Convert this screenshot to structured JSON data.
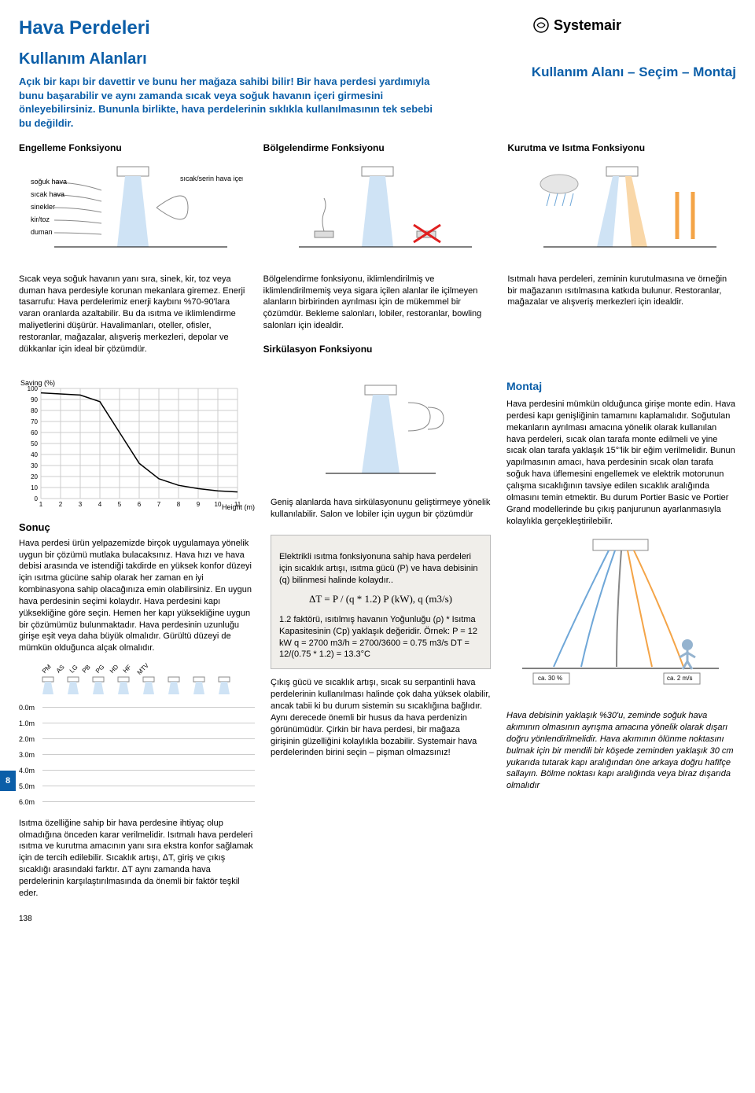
{
  "header": {
    "main_title": "Hava Perdeleri",
    "subtitle": "Kullanım Alanları",
    "pre_subtitle": "Kullanım Alanı – Seçim – Montaj",
    "brand": "Systemair",
    "intro": "Açık bir kapı bir davettir ve bunu her mağaza sahibi bilir! Bir hava perdesi yardımıyla bunu başarabilir ve aynı zamanda sıcak veya soğuk havanın içeri girmesini önleyebilirsiniz. Bununla birlikte, hava perdelerinin sıklıkla kullanılmasının tek sebebi bu değildir."
  },
  "functions": {
    "col1_h": "Engelleme Fonksiyonu",
    "col2_h": "Bölgelendirme Fonksiyonu",
    "col3_h": "Kurutma ve Isıtma Fonksiyonu",
    "col1_labels": {
      "a": "soğuk hava",
      "b": "sıcak hava",
      "c": "sinekler",
      "d": "kir/toz",
      "e": "duman",
      "right": "sıcak/serin hava içeride kalır"
    }
  },
  "body3": {
    "col1": "Sıcak veya soğuk havanın yanı sıra, sinek, kir, toz veya duman hava perdesiyle korunan mekanlara giremez. Enerji tasarrufu: Hava perdelerimiz enerji kaybını %70-90'lara varan oranlarda azaltabilir. Bu da ısıtma ve iklimlendirme maliyetlerini düşürür. Havalimanları, oteller, ofisler, restoranlar, mağazalar, alışveriş merkezleri, depolar ve dükkanlar için ideal bir çözümdür.",
    "col2": "Bölgelendirme fonksiyonu, iklimlendirilmiş ve iklimlendirilmemiş veya sigara içilen alanlar ile içilmeyen alanların birbirinden ayrılması için de mükemmel bir çözümdür. Bekleme salonları, lobiler, restoranlar, bowling salonları için idealdir.",
    "sirk_h": "Sirkülasyon Fonksiyonu",
    "col3": "Isıtmalı hava perdeleri, zeminin kurutulmasına ve örneğin bir mağazanın ısıtılmasına katkıda bulunur. Restoranlar, mağazalar ve alışveriş merkezleri için idealdir."
  },
  "chart": {
    "ylabel": "Saving (%)",
    "xlabel": "Height (m)",
    "ymin": 0,
    "ymax": 100,
    "ytick_step": 10,
    "xmin": 1,
    "xmax": 11,
    "points_x": [
      1,
      2,
      3,
      4,
      5,
      6,
      7,
      8,
      9,
      10,
      11
    ],
    "points_y": [
      96,
      95,
      94,
      88,
      60,
      32,
      18,
      12,
      9,
      7,
      6
    ],
    "line_color": "#000000",
    "grid_color": "#cccccc",
    "background": "#ffffff"
  },
  "sonuc": {
    "h": "Sonuç",
    "p1": "Hava perdesi ürün yelpazemizde birçok uygulamaya yönelik uygun bir çözümü mutlaka bulacaksınız. Hava hızı ve hava debisi arasında ve istendiği takdirde en yüksek konfor düzeyi için ısıtma gücüne sahip olarak her zaman en iyi kombinasyona sahip olacağınıza emin olabilirsiniz. En uygun hava perdesinin seçimi kolaydır. Hava perdesini kapı yüksekliğine göre seçin. Hemen her kapı yüksekliğine uygun bir çözümümüz bulunmaktadır. Hava perdesinin uzunluğu girişe eşit veya daha büyük olmalıdır. Gürültü düzeyi de mümkün olduğunca alçak olmalıdır.",
    "height_rows": [
      "0.0m",
      "1.0m",
      "2.0m",
      "3.0m",
      "4.0m",
      "5.0m",
      "6.0m"
    ],
    "model_labels": [
      "PM",
      "AS",
      "LG",
      "PB",
      "PG",
      "HD",
      "HF",
      "MTV"
    ],
    "p2": "Isıtma özelliğine sahip bir hava perdesine ihtiyaç olup olmadığına önceden karar verilmelidir. Isıtmalı hava perdeleri ısıtma ve kurutma amacının yanı sıra ekstra konfor sağlamak için de tercih edilebilir. Sıcaklık artışı, ΔT, giriş ve çıkış sıcaklığı arasındaki farktır. ΔT aynı zamanda hava perdelerinin karşılaştırılmasında da önemli bir faktör teşkil eder."
  },
  "middle": {
    "p1": "Geniş alanlarda hava sirkülasyonunu geliştirmeye yönelik kullanılabilir. Salon ve lobiler için uygun bir çözümdür",
    "box1": "Elektrikli ısıtma fonksiyonuna sahip hava perdeleri için sıcaklık artışı, ısıtma gücü (P) ve hava debisinin (q) bilinmesi halinde kolaydır..",
    "formula": "ΔT = P / (q * 1.2)    P (kW), q (m3/s)",
    "box2": "1.2 faktörü, ısıtılmış havanın Yoğunluğu (ρ) * Isıtma Kapasitesinin (Cp) yaklaşık değeridir. Örnek: P = 12 kW q = 2700 m3/h = 2700/3600 = 0.75 m3/s DT = 12/(0.75 * 1.2) = 13.3°C",
    "p2": "Çıkış gücü ve sıcaklık artışı, sıcak su serpantinli hava perdelerinin kullanılması halinde çok daha yüksek olabilir, ancak tabii ki bu durum sistemin su sıcaklığına bağlıdır. Aynı derecede önemli bir husus da hava perdenizin görünümüdür. Çirkin bir hava perdesi, bir mağaza girişinin güzelliğini kolaylıkla bozabilir. Systemair hava perdelerinden birini seçin – pişman olmazsınız!"
  },
  "montaj": {
    "h": "Montaj",
    "p1": "Hava perdesini mümkün olduğunca girişe monte edin. Hava perdesi kapı genişliğinin tamamını kaplamalıdır. Soğutulan mekanların ayrılması amacına yönelik olarak kullanılan hava perdeleri, sıcak olan tarafa monte edilmeli ve yine sıcak olan tarafa yaklaşık 15°'lik bir eğim verilmelidir. Bunun yapılmasının amacı, hava perdesinin sıcak olan tarafa soğuk hava üflemesini engellemek ve elektrik motorunun çalışma sıcaklığının tavsiye edilen sıcaklık aralığında olmasını temin etmektir. Bu durum Portier Basic ve Portier Grand modellerinde bu çıkış panjurunun ayarlanmasıyla kolaylıkla gerçekleştirilebilir.",
    "badge1": "ca. 30 %",
    "badge2": "ca. 2 m/s",
    "note": "Hava debisinin yaklaşık %30'u, zeminde soğuk hava akımının olmasının ayrışma amacına yönelik olarak dışarı doğru yönlendirilmelidir. Hava akımının ölünme noktasını bulmak için bir mendili bir köşede zeminden yaklaşık 30 cm yukarıda tutarak kapı aralığından öne arkaya doğru hafifçe sallayın. Bölme noktası kapı aralığında veya biraz dışarıda olmalıdır"
  },
  "footer": {
    "page_tab": "8",
    "page_num": "138"
  },
  "colors": {
    "brand_blue": "#0b5ea8",
    "cone_blue": "#cfe3f5",
    "warm_orange": "#f4a447",
    "cold_blue": "#6fa7d8",
    "red_x": "#e02020",
    "grey": "#888888"
  }
}
